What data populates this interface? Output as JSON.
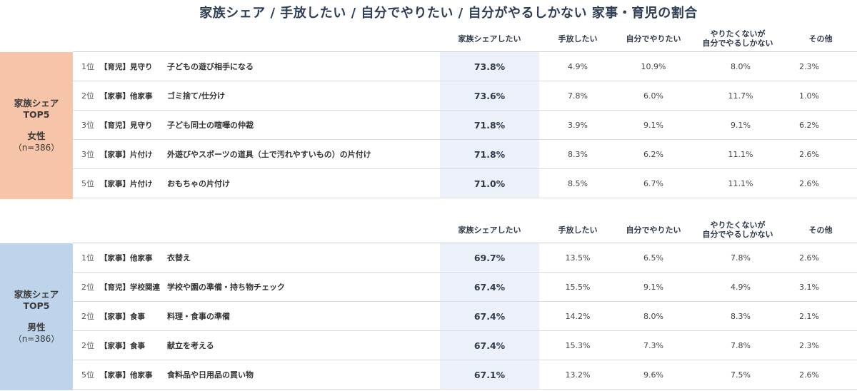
{
  "title": "家族シェア / 手放したい / 自分でやりたい / 自分がやるしかない 家事・育児の割合",
  "headers": {
    "share": "家族シェアしたい",
    "letgo": "手放したい",
    "self": "自分でやりたい",
    "must_line1": "やりたくないが",
    "must_line2": "自分でやるしかない",
    "other": "その他"
  },
  "chart_data": {
    "type": "table",
    "columns": [
      "家族シェアしたい",
      "手放したい",
      "自分でやりたい",
      "やりたくないが自分でやるしかない",
      "その他"
    ],
    "groups": [
      {
        "label_line1": "家族シェア",
        "label_line2": "TOP5",
        "gender": "女性",
        "n": "（n=386）",
        "rows": [
          {
            "rank": "1位",
            "category": "【育児】見守り",
            "item": "子どもの遊び相手になる",
            "share": "73.8%",
            "letgo": "4.9%",
            "self": "10.9%",
            "must": "8.0%",
            "other": "2.3%"
          },
          {
            "rank": "2位",
            "category": "【家事】他家事",
            "item": "ゴミ捨て/仕分け",
            "share": "73.6%",
            "letgo": "7.8%",
            "self": "6.0%",
            "must": "11.7%",
            "other": "1.0%"
          },
          {
            "rank": "3位",
            "category": "【育児】見守り",
            "item": "子ども同士の喧嘩の仲裁",
            "share": "71.8%",
            "letgo": "3.9%",
            "self": "9.1%",
            "must": "9.1%",
            "other": "6.2%"
          },
          {
            "rank": "3位",
            "category": "【家事】片付け",
            "item": "外遊びやスポーツの道具（土で汚れやすいもの）の片付け",
            "share": "71.8%",
            "letgo": "8.3%",
            "self": "6.2%",
            "must": "11.1%",
            "other": "2.6%"
          },
          {
            "rank": "5位",
            "category": "【家事】片付け",
            "item": "おもちゃの片付け",
            "share": "71.0%",
            "letgo": "8.5%",
            "self": "6.7%",
            "must": "11.1%",
            "other": "2.6%"
          }
        ]
      },
      {
        "label_line1": "家族シェア",
        "label_line2": "TOP5",
        "gender": "男性",
        "n": "（n=386）",
        "rows": [
          {
            "rank": "1位",
            "category": "【家事】他家事",
            "item": "衣替え",
            "share": "69.7%",
            "letgo": "13.5%",
            "self": "6.5%",
            "must": "7.8%",
            "other": "2.6%"
          },
          {
            "rank": "2位",
            "category": "【育児】学校関連",
            "item": "学校や園の準備・持ち物チェック",
            "share": "67.4%",
            "letgo": "15.5%",
            "self": "9.1%",
            "must": "4.9%",
            "other": "3.1%"
          },
          {
            "rank": "2位",
            "category": "【家事】食事",
            "item": "料理・食事の準備",
            "share": "67.4%",
            "letgo": "14.2%",
            "self": "8.0%",
            "must": "8.3%",
            "other": "2.1%"
          },
          {
            "rank": "2位",
            "category": "【家事】食事",
            "item": "献立を考える",
            "share": "67.4%",
            "letgo": "15.3%",
            "self": "7.3%",
            "must": "7.8%",
            "other": "2.3%"
          },
          {
            "rank": "5位",
            "category": "【家事】他家事",
            "item": "食料品や日用品の買い物",
            "share": "67.1%",
            "letgo": "13.2%",
            "self": "9.6%",
            "must": "7.5%",
            "other": "2.6%"
          }
        ]
      }
    ]
  }
}
